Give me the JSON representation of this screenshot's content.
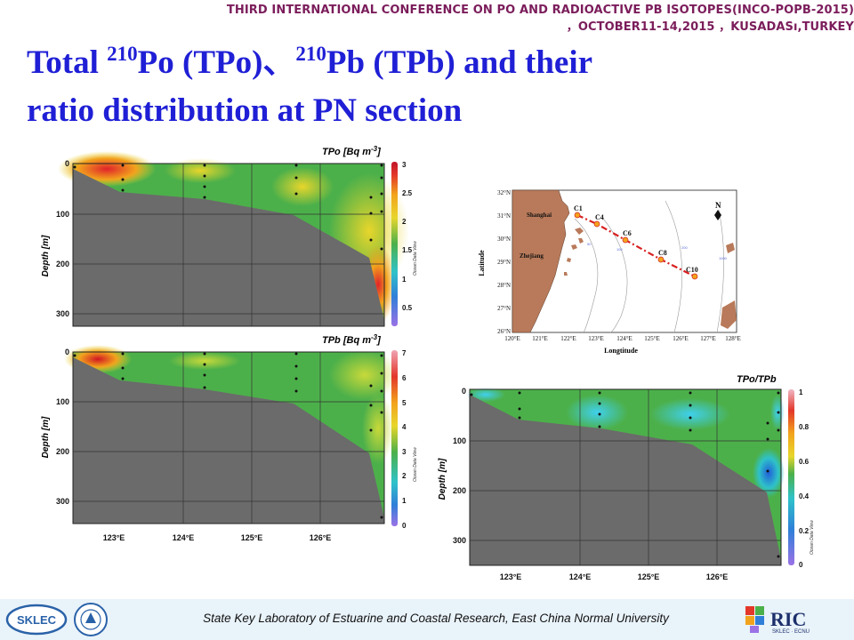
{
  "header": {
    "conference": "THIRD INTERNATIONAL CONFERENCE ON PO AND RADIOACTIVE PB ISOTOPES(INCO-POPB-2015) ，OCTOBER11-14,2015 ，KUSADASı,TURKEY"
  },
  "title": {
    "line1_a": "Total ",
    "sup1": "210",
    "line1_b": "Po (TPo)、",
    "sup2": "210",
    "line1_c": "Pb (TPb) and their",
    "line2": "ratio distribution at PN section"
  },
  "panels": {
    "tpo": {
      "label": "TPo [Bq m",
      "sup": "-3",
      "label_end": "]",
      "colorbar_ticks": [
        "3",
        "2.5",
        "2",
        "1.5",
        "1",
        "0.5"
      ]
    },
    "tpb": {
      "label": "TPb [Bq m",
      "sup": "-3",
      "label_end": "]",
      "colorbar_ticks": [
        "7",
        "6",
        "5",
        "4",
        "3",
        "2",
        "1",
        "0"
      ]
    },
    "ratio": {
      "label": "TPo/TPb",
      "colorbar_ticks": [
        "1",
        "0.8",
        "0.6",
        "0.4",
        "0.2",
        "0"
      ]
    }
  },
  "axes": {
    "depth_label": "Depth [m]",
    "depth_ticks": [
      "0",
      "100",
      "200",
      "300"
    ],
    "lon_ticks": [
      "123°E",
      "124°E",
      "125°E",
      "126°E"
    ],
    "odv": "Ocean Data View"
  },
  "map": {
    "stations": [
      "C1",
      "C4",
      "C6",
      "C8",
      "C10"
    ],
    "places": [
      "Shanghai",
      "Zhejiang"
    ],
    "lat_ticks": [
      "32°N",
      "31°N",
      "30°N",
      "29°N",
      "28°N",
      "27°N",
      "26°N"
    ],
    "lon_ticks": [
      "120°E",
      "121°E",
      "122°E",
      "123°E",
      "124°E",
      "125°E",
      "126°E",
      "127°E",
      "128°E"
    ],
    "xlabel": "Longtitude",
    "ylabel": "Latitude",
    "north": "N",
    "isobaths": [
      "50",
      "100",
      "200",
      "1000"
    ]
  },
  "footer": {
    "text": "State Key Laboratory of Estuarine and Coastal Research, East China Normal University",
    "sklec": "SKLEC",
    "ric": "RIC",
    "ric_sub": "SKLEC · ECNU"
  },
  "colors": {
    "title_blue": "#1f1fd6",
    "conf_purple": "#7b1d5b",
    "seafloor_grey": "#6b6b6b",
    "scale_dark_red": "#c0152a",
    "scale_red": "#e3372a",
    "scale_orange": "#f2a31d",
    "scale_yellow": "#e8d62b",
    "scale_green": "#4cb04a",
    "scale_cyan": "#2fc2c9",
    "scale_blue": "#2f7fd8",
    "scale_purple": "#9b72e6"
  }
}
